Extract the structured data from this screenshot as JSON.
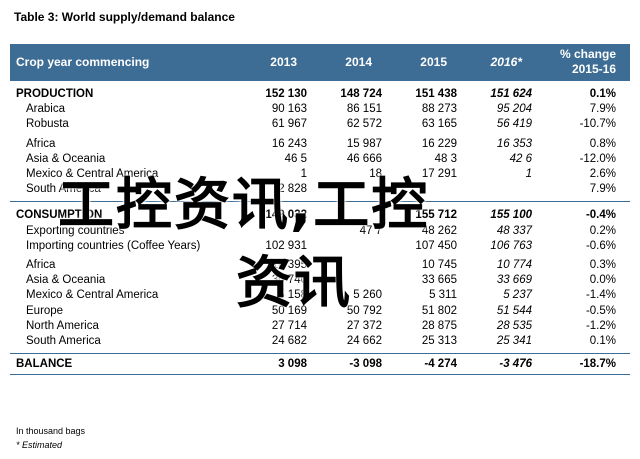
{
  "title": "Table 3: World supply/demand balance",
  "header": {
    "label": "Crop year commencing",
    "years": [
      "2013",
      "2014",
      "2015",
      "2016*"
    ],
    "change_line1": "% change",
    "change_line2": "2015-16"
  },
  "sections": [
    {
      "name": "PRODUCTION",
      "values": [
        "152 130",
        "148 724",
        "151 438",
        "151 624",
        "0.1%"
      ],
      "rows": [
        {
          "label": "Arabica",
          "values": [
            "90 163",
            "86 151",
            "88 273",
            "95 204",
            "7.9%"
          ]
        },
        {
          "label": "Robusta",
          "values": [
            "61 967",
            "62 572",
            "63 165",
            "56 419",
            "-10.7%"
          ]
        },
        {
          "label": "Africa",
          "values": [
            "16 243",
            "15 987",
            "16 229",
            "16 353",
            "0.8%"
          ]
        },
        {
          "label": "Asia & Oceania",
          "values": [
            "46 5",
            "46 666",
            "48 3",
            "42 6",
            "-12.0%"
          ]
        },
        {
          "label": "Mexico & Central America",
          "values": [
            "1",
            "18",
            "17 291",
            "1",
            "2.6%"
          ]
        },
        {
          "label": "South America",
          "values": [
            "2 828",
            "",
            "",
            "",
            "7.9%"
          ]
        }
      ]
    },
    {
      "name": "CONSUMPTION",
      "values": [
        "149 032",
        "",
        "155 712",
        "155 100",
        "-0.4%"
      ],
      "rows": [
        {
          "label": "Exporting countries",
          "values": [
            "",
            "47 7",
            "48 262",
            "48 337",
            "0.2%"
          ]
        },
        {
          "label": "Importing countries (Coffee Years)",
          "values": [
            "102 931",
            "",
            "107 450",
            "106 763",
            "-0.6%"
          ]
        },
        {
          "label": "Africa",
          "values": [
            "10 395",
            "",
            "10 745",
            "10 774",
            "0.3%"
          ]
        },
        {
          "label": "Asia & Oceania",
          "values": [
            "30 740",
            "",
            "33 665",
            "33 669",
            "0.0%"
          ]
        },
        {
          "label": "Mexico & Central America",
          "values": [
            "5 158",
            "5 260",
            "5 311",
            "5 237",
            "-1.4%"
          ]
        },
        {
          "label": "Europe",
          "values": [
            "50 169",
            "50 792",
            "51 802",
            "51 544",
            "-0.5%"
          ]
        },
        {
          "label": "North America",
          "values": [
            "27 714",
            "27 372",
            "28 875",
            "28 535",
            "-1.2%"
          ]
        },
        {
          "label": "South America",
          "values": [
            "24 682",
            "24 662",
            "25 313",
            "25 341",
            "0.1%"
          ]
        }
      ]
    }
  ],
  "balance": {
    "name": "BALANCE",
    "values": [
      "3 098",
      "-3 098",
      "-4 274",
      "-3 476",
      "-18.7%"
    ]
  },
  "notes": {
    "unit": "In thousand bags",
    "estimated": "* Estimated"
  },
  "watermark": {
    "line1": "工控资讯,工控",
    "line2": "资讯"
  }
}
